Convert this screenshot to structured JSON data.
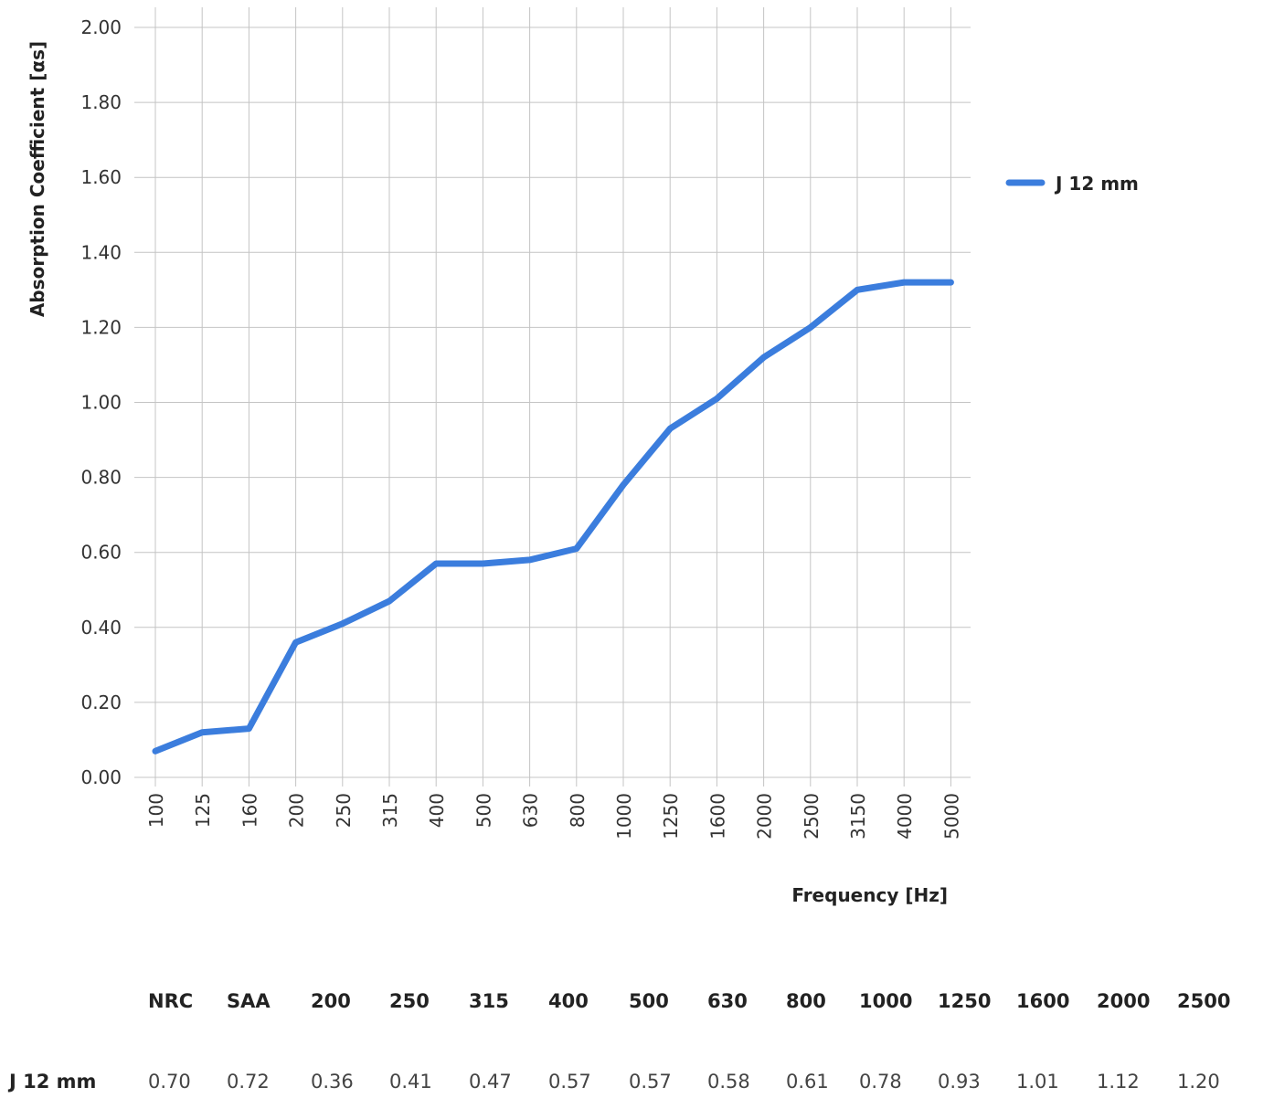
{
  "chart_data": {
    "type": "line",
    "title": "",
    "xlabel": "Frequency [Hz]",
    "ylabel": "Absorption Coefficient [αs]",
    "x": [
      "100",
      "125",
      "160",
      "200",
      "250",
      "315",
      "400",
      "500",
      "630",
      "800",
      "1000",
      "1250",
      "1600",
      "2000",
      "2500",
      "3150",
      "4000",
      "5000"
    ],
    "ylim": [
      0,
      2.0
    ],
    "yticks": [
      "0.00",
      "0.20",
      "0.40",
      "0.60",
      "0.80",
      "1.00",
      "1.20",
      "1.40",
      "1.60",
      "1.80",
      "2.00"
    ],
    "grid": true,
    "legend_position": "right",
    "series": [
      {
        "name": "J 12 mm",
        "color": "#3b7ddd",
        "values": [
          0.07,
          0.12,
          0.13,
          0.36,
          0.41,
          0.47,
          0.57,
          0.57,
          0.58,
          0.61,
          0.78,
          0.93,
          1.01,
          1.12,
          1.2,
          1.3,
          1.32,
          1.32
        ]
      }
    ]
  },
  "summary_table": {
    "headers": [
      "NRC",
      "SAA",
      "200",
      "250",
      "315",
      "400",
      "500",
      "630",
      "800",
      "1000",
      "1250",
      "1600",
      "2000",
      "2500"
    ],
    "rows": [
      {
        "label": "J 12 mm",
        "values": [
          "0.70",
          "0.72",
          "0.36",
          "0.41",
          "0.47",
          "0.57",
          "0.57",
          "0.58",
          "0.61",
          "0.78",
          "0.93",
          "1.01",
          "1.12",
          "1.20"
        ]
      }
    ]
  }
}
